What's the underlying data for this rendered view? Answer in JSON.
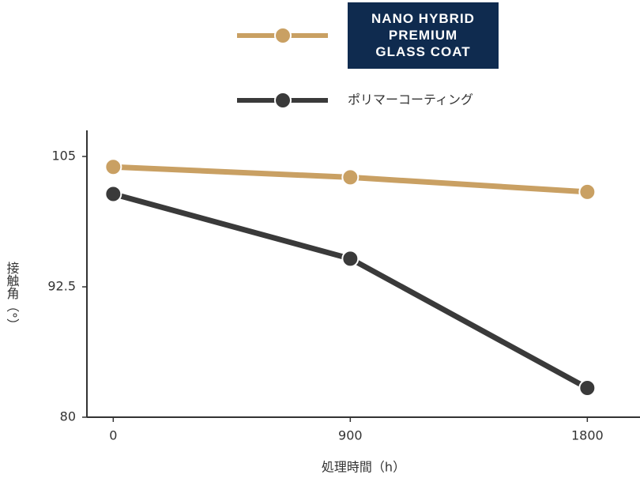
{
  "chart_data": {
    "type": "line",
    "x_label": "処理時間（h）",
    "y_label": "接触角（°）",
    "x": [
      0,
      900,
      1800
    ],
    "series": [
      {
        "name": "NANO HYBRID\nPREMIUM\nGLASS COAT",
        "color": "#c9a063",
        "values": [
          104.0,
          103.0,
          101.6
        ]
      },
      {
        "name": "ポリマーコーティング",
        "color": "#3a3a3a",
        "values": [
          101.4,
          95.2,
          82.8
        ]
      }
    ],
    "xlim": [
      -100,
      2000
    ],
    "xticks": [
      0,
      900,
      1800
    ],
    "ylim": [
      80,
      107.5
    ],
    "yticks": [
      80,
      92.5,
      105
    ]
  }
}
